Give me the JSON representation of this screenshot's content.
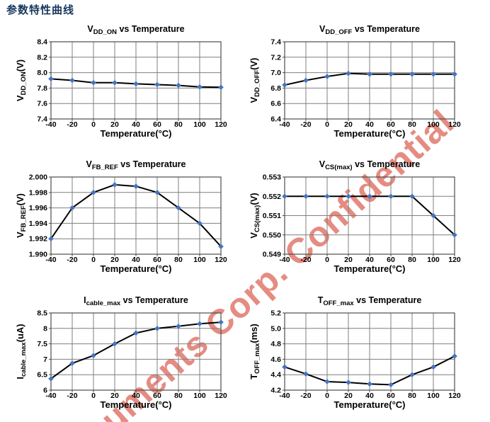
{
  "page": {
    "title": "参数特性曲线",
    "title_color": "#17365d",
    "background": "#ffffff"
  },
  "watermark": {
    "text": "uments Corp. Confidential",
    "color": "#e1796d"
  },
  "style": {
    "grid_color": "#7f7f7f",
    "border_color": "#4d4d4d",
    "line_color": "#000000",
    "marker_color": "#4674c1"
  },
  "x_axis": {
    "label": "Temperature(°C)",
    "min": -40,
    "max": 120,
    "tick_labels": [
      "-40",
      "-20",
      "0",
      "20",
      "40",
      "60",
      "80",
      "100",
      "120"
    ]
  },
  "chart_data": [
    {
      "type": "line",
      "title": "V_DD_ON vs Temperature",
      "title_parts": {
        "pre": "V",
        "sub": "DD_ON",
        "post": " vs Temperature"
      },
      "ylabel": "V_DD_ON(V)",
      "ylabel_parts": {
        "pre": "V",
        "sub": "DD_ON",
        "post": "(V)"
      },
      "xlabel": "Temperature(°C)",
      "x": [
        -40,
        -20,
        0,
        20,
        40,
        60,
        80,
        100,
        120
      ],
      "values": [
        7.92,
        7.9,
        7.87,
        7.87,
        7.855,
        7.845,
        7.835,
        7.815,
        7.81
      ],
      "ylim": [
        7.4,
        8.4
      ],
      "y_tick_labels": [
        "7.4",
        "7.6",
        "7.8",
        "8.0",
        "8.2",
        "8.4"
      ],
      "grid": true,
      "legend": null
    },
    {
      "type": "line",
      "title": "V_DD_OFF vs Temperature",
      "title_parts": {
        "pre": "V",
        "sub": "DD_OFF",
        "post": " vs Temperature"
      },
      "ylabel": "V_DD_OFF(V)",
      "ylabel_parts": {
        "pre": "V",
        "sub": "DD_OFF",
        "post": "(V)"
      },
      "xlabel": "Temperature(°C)",
      "x": [
        -40,
        -20,
        0,
        20,
        40,
        60,
        80,
        100,
        120
      ],
      "values": [
        6.84,
        6.9,
        6.95,
        6.99,
        6.98,
        6.98,
        6.98,
        6.98,
        6.98
      ],
      "ylim": [
        6.4,
        7.4
      ],
      "y_tick_labels": [
        "6.4",
        "6.6",
        "6.8",
        "7.0",
        "7.2",
        "7.4"
      ],
      "grid": true,
      "legend": null
    },
    {
      "type": "line",
      "title": "V_FB_REF vs Temperature",
      "title_parts": {
        "pre": "V",
        "sub": "FB_REF",
        "post": " vs Temperature"
      },
      "ylabel": "V_FB_REF(V)",
      "ylabel_parts": {
        "pre": "V",
        "sub": "FB_REF",
        "post": "(V)"
      },
      "xlabel": "Temperature(°C)",
      "x": [
        -40,
        -20,
        0,
        20,
        40,
        60,
        80,
        100,
        120
      ],
      "values": [
        1.992,
        1.996,
        1.998,
        1.999,
        1.9988,
        1.998,
        1.996,
        1.994,
        1.991
      ],
      "ylim": [
        1.99,
        2.0
      ],
      "y_tick_labels": [
        "1.990",
        "1.992",
        "1.994",
        "1.996",
        "1.998",
        "2.000"
      ],
      "grid": true,
      "legend": null
    },
    {
      "type": "line",
      "title": "V_CS(max) vs Temperature",
      "title_parts": {
        "pre": "V",
        "sub": "CS(max)",
        "post": " vs Temperature"
      },
      "ylabel": "V_CS(max)(V)",
      "ylabel_parts": {
        "pre": "V",
        "sub": "CS(max)",
        "post": "(V)"
      },
      "xlabel": "Temperature(°C)",
      "x": [
        -40,
        -20,
        0,
        20,
        40,
        60,
        80,
        100,
        120
      ],
      "values": [
        0.552,
        0.552,
        0.552,
        0.552,
        0.552,
        0.552,
        0.552,
        0.551,
        0.55
      ],
      "ylim": [
        0.549,
        0.553
      ],
      "y_tick_labels": [
        "0.549",
        "0.550",
        "0.551",
        "0.552",
        "0.553"
      ],
      "grid": true,
      "legend": null
    },
    {
      "type": "line",
      "title": "I_cable_max vs Temperature",
      "title_parts": {
        "pre": "I",
        "sub": "cable_max",
        "post": " vs Temperature"
      },
      "ylabel": "I_cable_max(uA)",
      "ylabel_parts": {
        "pre": "I",
        "sub": "cable_max",
        "post": "(uA)"
      },
      "xlabel": "Temperature(°C)",
      "x": [
        -40,
        -20,
        0,
        20,
        40,
        60,
        80,
        100,
        120
      ],
      "values": [
        6.37,
        6.87,
        7.12,
        7.5,
        7.85,
        8.0,
        8.07,
        8.15,
        8.2
      ],
      "ylim": [
        6.0,
        8.5
      ],
      "y_tick_labels": [
        "6",
        "6.5",
        "7",
        "7.5",
        "8",
        "8.5"
      ],
      "grid": true,
      "legend": null
    },
    {
      "type": "line",
      "title": "T_OFF_max vs Temperature",
      "title_parts": {
        "pre": "T",
        "sub": "OFF_max",
        "post": " vs Temperature"
      },
      "ylabel": "T_OFF_max(ms)",
      "ylabel_parts": {
        "pre": "T",
        "sub": "OFF_max",
        "post": "(ms)"
      },
      "xlabel": "Temperature(°C)",
      "x": [
        -40,
        -20,
        0,
        20,
        40,
        60,
        80,
        100,
        120
      ],
      "values": [
        4.5,
        4.41,
        4.31,
        4.3,
        4.28,
        4.27,
        4.4,
        4.5,
        4.64
      ],
      "ylim": [
        4.2,
        5.2
      ],
      "y_tick_labels": [
        "4.2",
        "4.4",
        "4.6",
        "4.8",
        "5.0",
        "5.2"
      ],
      "grid": true,
      "legend": null
    }
  ]
}
